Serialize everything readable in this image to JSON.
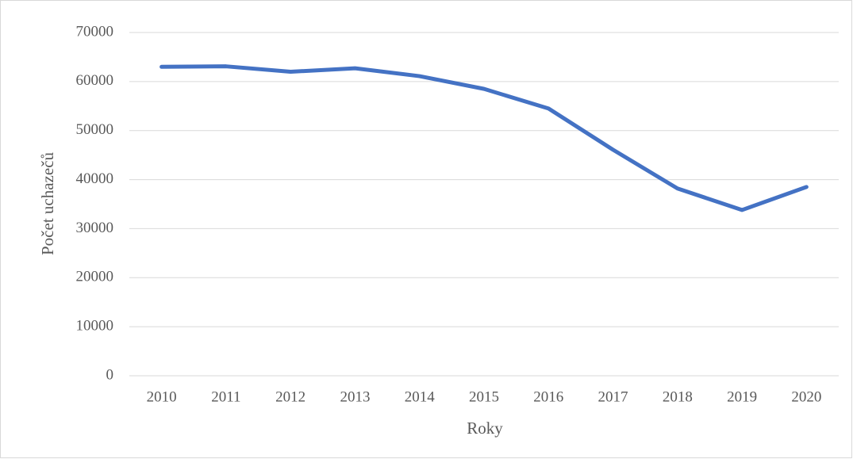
{
  "chart_data": {
    "type": "line",
    "xlabel": "Roky",
    "ylabel": "Počet uchazečů",
    "categories": [
      "2010",
      "2011",
      "2012",
      "2013",
      "2014",
      "2015",
      "2016",
      "2017",
      "2018",
      "2019",
      "2020"
    ],
    "series": [
      {
        "color": "#4472c4",
        "values": [
          63000,
          63100,
          62000,
          62700,
          61100,
          58500,
          54500,
          46100,
          38200,
          33800,
          38500
        ]
      }
    ],
    "ylim": [
      0,
      70000
    ],
    "yticks": [
      0,
      10000,
      20000,
      30000,
      40000,
      50000,
      60000,
      70000
    ],
    "grid": true
  }
}
